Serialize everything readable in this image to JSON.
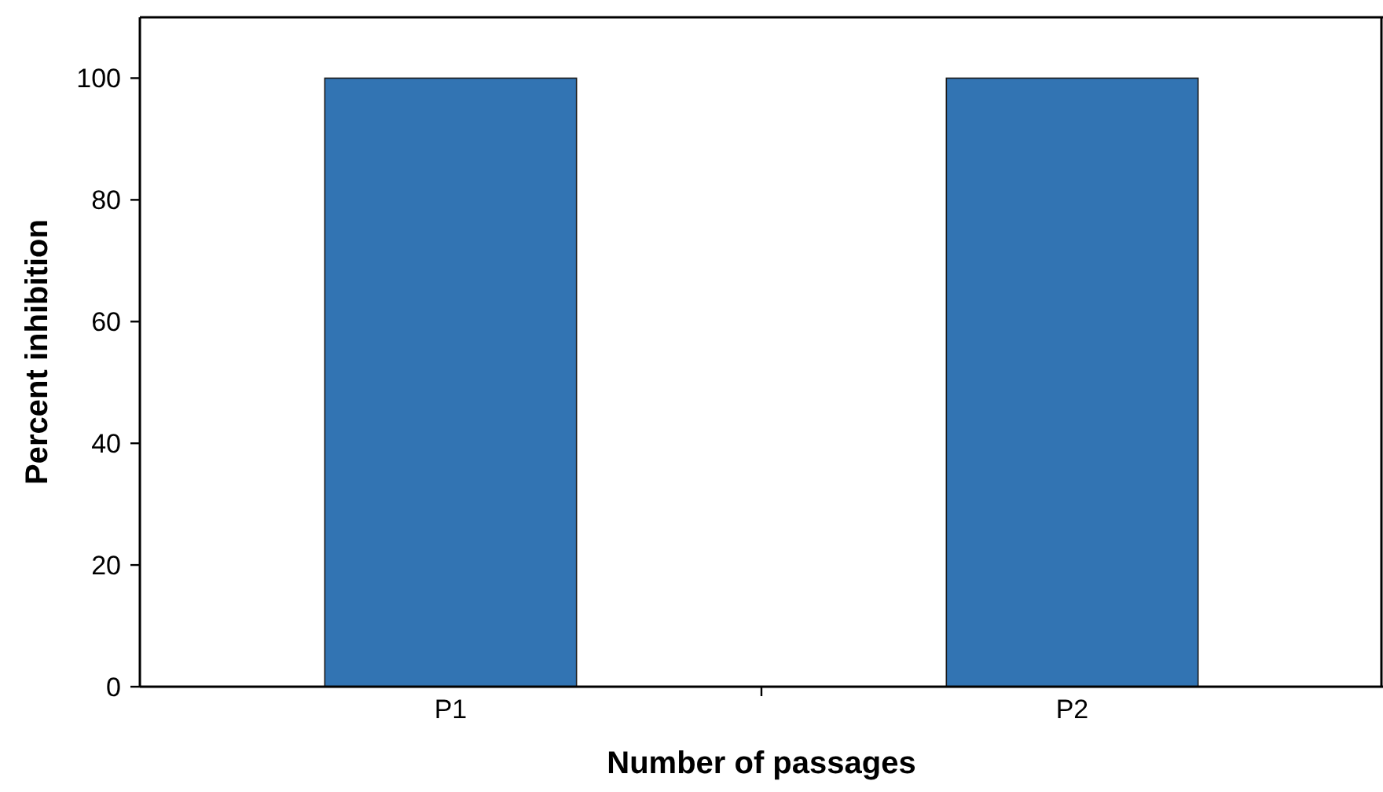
{
  "chart_data": {
    "type": "bar",
    "xlabel": "Number of passages",
    "ylabel": "Percent inhibition",
    "categories": [
      "P1",
      "P2"
    ],
    "values": [
      100,
      100
    ],
    "color": "#3274b3",
    "ylim": [
      0,
      110
    ],
    "yticks": [
      0,
      20,
      40,
      60,
      80,
      100
    ],
    "grid": false
  }
}
